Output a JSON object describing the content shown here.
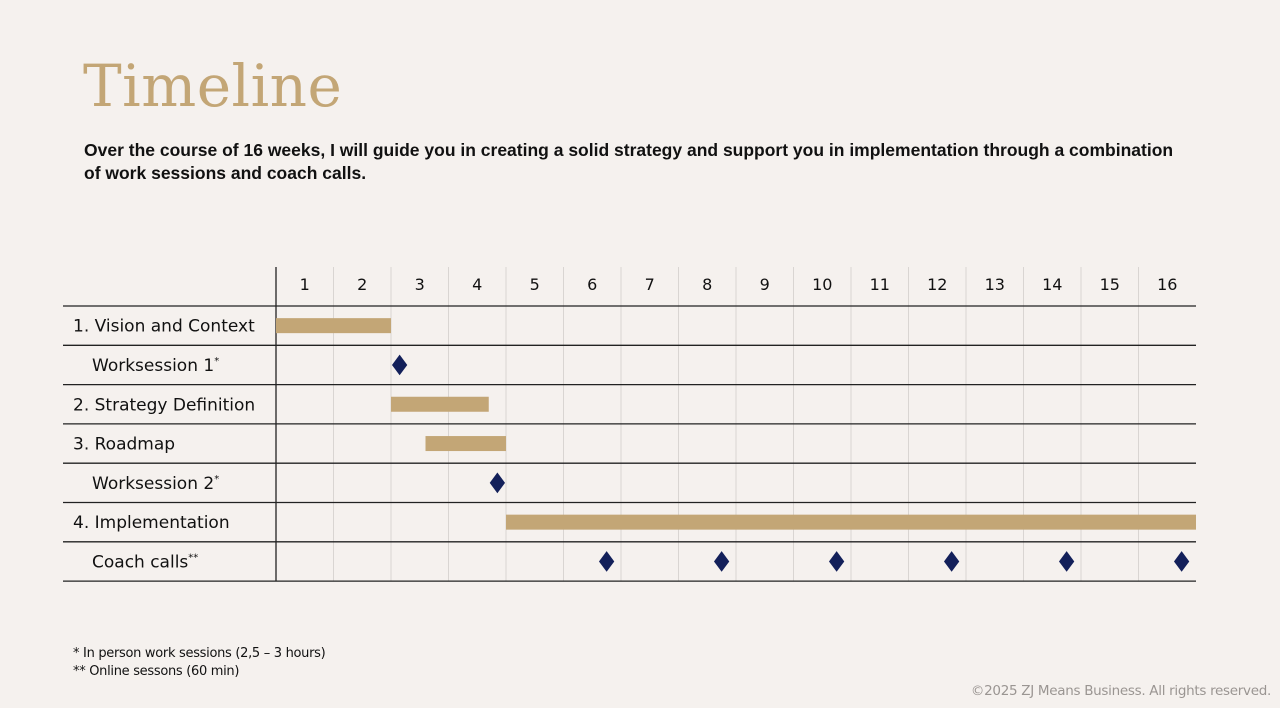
{
  "title": "Timeline",
  "subtitle": "Over the course of 16 weeks, I will guide you in creating a solid strategy and support you in implementation through a combination of work sessions and coach calls.",
  "colors": {
    "bar": "#c3a676",
    "milestone": "#13205a",
    "title": "#c3a676",
    "background": "#f5f1ee"
  },
  "chart_data": {
    "type": "gantt",
    "weeks": [
      "1",
      "2",
      "3",
      "4",
      "5",
      "6",
      "7",
      "8",
      "9",
      "10",
      "11",
      "12",
      "13",
      "14",
      "15",
      "16"
    ],
    "rows": [
      {
        "label": "1. Vision and Context",
        "indent": false,
        "kind": "bar",
        "start": 0,
        "end": 2
      },
      {
        "label": "Worksession 1",
        "sup": "*",
        "indent": true,
        "kind": "milestone",
        "at": [
          2.15
        ]
      },
      {
        "label": "2. Strategy Definition",
        "indent": false,
        "kind": "bar",
        "start": 2,
        "end": 3.7
      },
      {
        "label": "3. Roadmap",
        "indent": false,
        "kind": "bar",
        "start": 2.6,
        "end": 4
      },
      {
        "label": "Worksession 2",
        "sup": "*",
        "indent": true,
        "kind": "milestone",
        "at": [
          3.85
        ]
      },
      {
        "label": "4. Implementation",
        "indent": false,
        "kind": "bar",
        "start": 4,
        "end": 16
      },
      {
        "label": "Coach calls",
        "sup": "**",
        "indent": true,
        "kind": "milestone",
        "at": [
          5.75,
          7.75,
          9.75,
          11.75,
          13.75,
          15.75
        ]
      }
    ]
  },
  "footnotes": {
    "note1": "* In person work sessions (2,5 – 3 hours)",
    "note2": "** Online sessons (60 min)"
  },
  "copyright": "©2025 ZJ Means Business. All rights reserved."
}
